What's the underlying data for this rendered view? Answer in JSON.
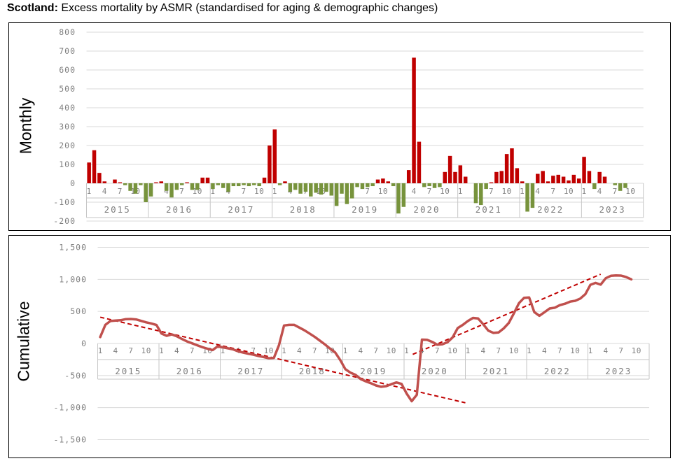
{
  "title": {
    "prefix": "Scotland:",
    "rest": " Excess mortality by ASMR (standardised for aging & demographic changes)"
  },
  "colors": {
    "positive_bar": "#C00000",
    "negative_bar": "#77933C",
    "cumulative_line": "#C0504D",
    "trend_line": "#C00000",
    "gridline": "#D9D9D9",
    "band_line": "#C6C6C6",
    "tick_text": "#7F7F7F",
    "border": "#000000",
    "title_text": "#000000"
  },
  "x_axis": {
    "month_ticks": [
      "1",
      "4",
      "7",
      "10"
    ],
    "years": [
      "2015",
      "2016",
      "2017",
      "2018",
      "2019",
      "2020",
      "2021",
      "2022",
      "2023"
    ]
  },
  "chart_data": [
    {
      "type": "bar",
      "id": "monthly",
      "ylabel": "Monthly",
      "ylim": [
        -200,
        800
      ],
      "ytick_step": 100,
      "ytick_labels": [
        "800",
        "700",
        "600",
        "500",
        "400",
        "300",
        "200",
        "100",
        "0",
        "-100",
        "-200"
      ],
      "x_month_ticks": [
        "1",
        "4",
        "7",
        "10"
      ],
      "x_years": [
        "2015",
        "2016",
        "2017",
        "2018",
        "2019",
        "2020",
        "2021",
        "2022",
        "2023"
      ],
      "grid": true,
      "legend": "none",
      "values": [
        110,
        175,
        55,
        10,
        0,
        20,
        5,
        -10,
        -40,
        -55,
        -10,
        -100,
        -70,
        5,
        10,
        -40,
        -75,
        -35,
        -10,
        5,
        -35,
        -35,
        30,
        30,
        -30,
        -10,
        -25,
        -45,
        -15,
        -15,
        -10,
        -15,
        -10,
        -15,
        30,
        200,
        285,
        -10,
        10,
        -45,
        -35,
        -55,
        -45,
        -70,
        -50,
        -60,
        -45,
        -65,
        -120,
        -55,
        -110,
        -80,
        -20,
        -30,
        -20,
        -15,
        20,
        25,
        10,
        -15,
        -160,
        -125,
        70,
        665,
        220,
        -20,
        -15,
        -25,
        -20,
        60,
        145,
        60,
        95,
        35,
        0,
        -105,
        -115,
        -30,
        5,
        60,
        65,
        155,
        185,
        80,
        10,
        -150,
        -130,
        50,
        65,
        10,
        40,
        45,
        35,
        15,
        45,
        25,
        140,
        65,
        -30,
        60,
        35,
        0,
        -10,
        -40,
        -25,
        null,
        null,
        null
      ]
    },
    {
      "type": "line",
      "id": "cumulative",
      "ylabel": "Cumulative",
      "ylim": [
        -1500,
        1500
      ],
      "ytick_step": 500,
      "ytick_labels": [
        "1,500",
        "1,000",
        "500",
        "0",
        "-500",
        "-1,000",
        "-1,500"
      ],
      "x_month_ticks": [
        "1",
        "4",
        "7",
        "10"
      ],
      "x_years": [
        "2015",
        "2016",
        "2017",
        "2018",
        "2019",
        "2020",
        "2021",
        "2022",
        "2023"
      ],
      "grid": true,
      "legend": "none",
      "values": [
        100,
        290,
        350,
        358,
        362,
        380,
        382,
        375,
        352,
        330,
        312,
        288,
        155,
        120,
        142,
        112,
        70,
        32,
        2,
        -28,
        -58,
        -82,
        -102,
        -45,
        -60,
        -75,
        -92,
        -122,
        -142,
        -160,
        -175,
        -195,
        -212,
        -230,
        -225,
        -25,
        280,
        290,
        290,
        248,
        205,
        155,
        103,
        45,
        -15,
        -80,
        -140,
        -260,
        -400,
        -455,
        -490,
        -555,
        -590,
        -620,
        -655,
        -675,
        -665,
        -635,
        -608,
        -630,
        -780,
        -900,
        -800,
        60,
        58,
        25,
        -20,
        -12,
        20,
        95,
        240,
        290,
        350,
        398,
        390,
        300,
        200,
        165,
        172,
        235,
        320,
        470,
        630,
        712,
        718,
        490,
        432,
        488,
        545,
        557,
        598,
        620,
        652,
        665,
        700,
        770,
        915,
        945,
        918,
        1018,
        1055,
        1060,
        1058,
        1035,
        1000,
        null,
        null,
        null
      ],
      "trendlines": [
        {
          "from_month": 0.5,
          "from_value": 410,
          "to_month": 72,
          "to_value": -925
        },
        {
          "from_month": 61.7,
          "from_value": -170,
          "to_month": 98.5,
          "to_value": 1080
        }
      ]
    }
  ]
}
